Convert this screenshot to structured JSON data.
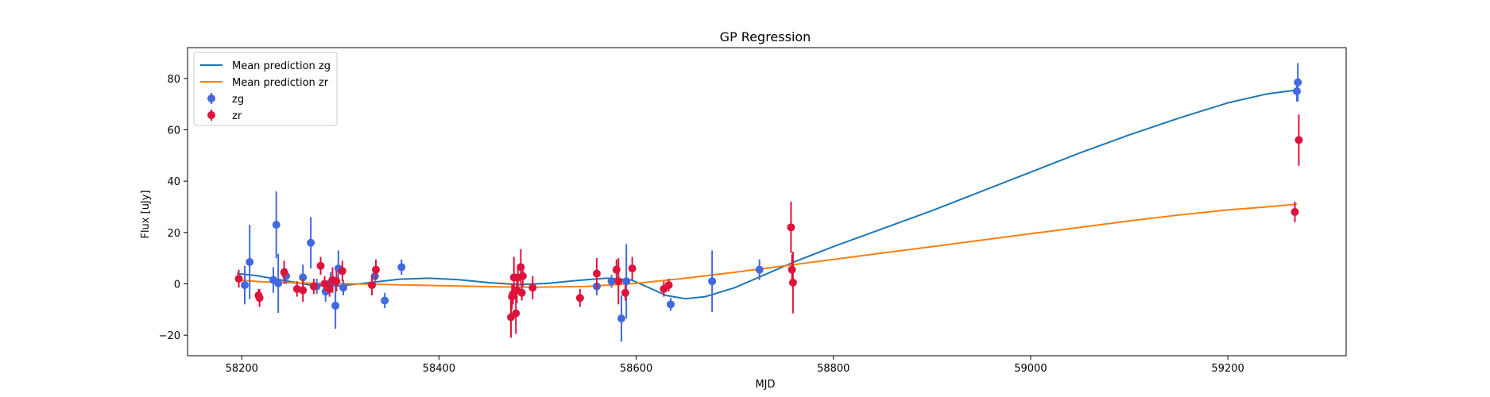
{
  "chart_data": {
    "type": "scatter",
    "title": "GP Regression",
    "xlabel": "MJD",
    "ylabel": "Flux [uJy]",
    "xlim": [
      58145,
      59320
    ],
    "ylim": [
      -28,
      92
    ],
    "xticks": [
      58200,
      58400,
      58600,
      58800,
      59000,
      59200
    ],
    "yticks": [
      -20,
      0,
      20,
      40,
      60,
      80
    ],
    "grid": false,
    "legend_position": "top-left",
    "colors": {
      "line_zg": "#1f77b4",
      "line_zr": "#ff7f0e",
      "points_zg": "#4169e1",
      "points_zr": "#dc143c"
    },
    "lines": [
      {
        "name": "Mean prediction zg",
        "color": "#1f77b4",
        "x": [
          58195,
          58215,
          58240,
          58270,
          58300,
          58330,
          58360,
          58390,
          58420,
          58450,
          58480,
          58510,
          58540,
          58570,
          58595,
          58610,
          58630,
          58650,
          58670,
          58700,
          58730,
          58760,
          58800,
          58850,
          58900,
          58950,
          59000,
          59050,
          59100,
          59150,
          59200,
          59240,
          59270
        ],
        "y": [
          4,
          3.2,
          1.5,
          -0.5,
          -0.8,
          0.5,
          1.8,
          2.2,
          1.6,
          0.5,
          -0.3,
          0.2,
          1.3,
          2.2,
          1.5,
          -1,
          -4.5,
          -5.8,
          -5,
          -1.5,
          3.5,
          8.5,
          14.5,
          21.5,
          28.5,
          36,
          43.5,
          51,
          58,
          64.5,
          70.5,
          74,
          75.5
        ]
      },
      {
        "name": "Mean prediction zr",
        "color": "#ff7f0e",
        "x": [
          58195,
          58220,
          58250,
          58280,
          58300,
          58350,
          58400,
          58450,
          58480,
          58500,
          58550,
          58600,
          58650,
          58700,
          58750,
          58800,
          58850,
          58900,
          58950,
          59000,
          59050,
          59100,
          59150,
          59200,
          59240,
          59270
        ],
        "y": [
          1.5,
          0.8,
          0.4,
          0.2,
          0.1,
          -0.3,
          -0.7,
          -1.1,
          -1.3,
          -1.3,
          -1,
          0.2,
          2.2,
          4.5,
          7,
          9.5,
          12,
          14.5,
          17,
          19.5,
          22,
          24.5,
          26.8,
          28.8,
          30,
          31
        ]
      }
    ],
    "series": [
      {
        "name": "zg",
        "color": "#4169e1",
        "points": [
          {
            "x": 58203,
            "y": -0.5,
            "err": 7.5
          },
          {
            "x": 58208,
            "y": 8.5,
            "err": 14.5
          },
          {
            "x": 58232,
            "y": 1.5,
            "err": 5
          },
          {
            "x": 58235,
            "y": 23,
            "err": 13
          },
          {
            "x": 58237,
            "y": 0.2,
            "err": 11.5
          },
          {
            "x": 58245,
            "y": 3,
            "err": 3
          },
          {
            "x": 58262,
            "y": 2.5,
            "err": 5
          },
          {
            "x": 58270,
            "y": 16,
            "err": 10
          },
          {
            "x": 58276,
            "y": -1,
            "err": 3
          },
          {
            "x": 58285,
            "y": -3,
            "err": 4
          },
          {
            "x": 58290,
            "y": 0.5,
            "err": 4
          },
          {
            "x": 58295,
            "y": -8.5,
            "err": 9
          },
          {
            "x": 58298,
            "y": 6,
            "err": 7
          },
          {
            "x": 58303,
            "y": -1.5,
            "err": 3
          },
          {
            "x": 58335,
            "y": 3,
            "err": 3
          },
          {
            "x": 58345,
            "y": -6.5,
            "err": 3
          },
          {
            "x": 58362,
            "y": 6.5,
            "err": 3
          },
          {
            "x": 58560,
            "y": -1,
            "err": 3.5
          },
          {
            "x": 58575,
            "y": 1,
            "err": 2.5
          },
          {
            "x": 58585,
            "y": -13.5,
            "err": 9
          },
          {
            "x": 58590,
            "y": 1,
            "err": 14.5
          },
          {
            "x": 58635,
            "y": -8,
            "err": 2.5
          },
          {
            "x": 58677,
            "y": 1,
            "err": 12
          },
          {
            "x": 58725,
            "y": 5.5,
            "err": 4
          },
          {
            "x": 59270,
            "y": 75,
            "err": 4
          },
          {
            "x": 59271,
            "y": 78.5,
            "err": 7.5
          }
        ]
      },
      {
        "name": "zr",
        "color": "#dc143c",
        "points": [
          {
            "x": 58197,
            "y": 2,
            "err": 3.5
          },
          {
            "x": 58217,
            "y": -4.5,
            "err": 2.5
          },
          {
            "x": 58218,
            "y": -5.5,
            "err": 3.5
          },
          {
            "x": 58243,
            "y": 4.5,
            "err": 4.5
          },
          {
            "x": 58256,
            "y": -2,
            "err": 3
          },
          {
            "x": 58262,
            "y": -2.5,
            "err": 4.5
          },
          {
            "x": 58273,
            "y": -1,
            "err": 3
          },
          {
            "x": 58280,
            "y": 7,
            "err": 3.5
          },
          {
            "x": 58284,
            "y": 0,
            "err": 3
          },
          {
            "x": 58289,
            "y": -2,
            "err": 3
          },
          {
            "x": 58292,
            "y": 1.5,
            "err": 5
          },
          {
            "x": 58296,
            "y": 1,
            "err": 4
          },
          {
            "x": 58302,
            "y": 5,
            "err": 4
          },
          {
            "x": 58332,
            "y": -0.5,
            "err": 4
          },
          {
            "x": 58336,
            "y": 5.5,
            "err": 4
          },
          {
            "x": 58473,
            "y": -13,
            "err": 8
          },
          {
            "x": 58474,
            "y": -5,
            "err": 5
          },
          {
            "x": 58475,
            "y": -4,
            "err": 4
          },
          {
            "x": 58476,
            "y": 2.5,
            "err": 8
          },
          {
            "x": 58478,
            "y": -11.5,
            "err": 8
          },
          {
            "x": 58479,
            "y": -2.5,
            "err": 5
          },
          {
            "x": 58480,
            "y": 2.5,
            "err": 5
          },
          {
            "x": 58483,
            "y": 6.5,
            "err": 7
          },
          {
            "x": 58484,
            "y": -3.5,
            "err": 3
          },
          {
            "x": 58485,
            "y": 3,
            "err": 4
          },
          {
            "x": 58495,
            "y": -1.5,
            "err": 4.5
          },
          {
            "x": 58543,
            "y": -5.5,
            "err": 3.5
          },
          {
            "x": 58560,
            "y": 4,
            "err": 6
          },
          {
            "x": 58580,
            "y": 5.5,
            "err": 4
          },
          {
            "x": 58582,
            "y": 1,
            "err": 9
          },
          {
            "x": 58589,
            "y": -3.5,
            "err": 3
          },
          {
            "x": 58596,
            "y": 6,
            "err": 4.5
          },
          {
            "x": 58628,
            "y": -2,
            "err": 3
          },
          {
            "x": 58633,
            "y": -0.5,
            "err": 2.5
          },
          {
            "x": 58757,
            "y": 22,
            "err": 10
          },
          {
            "x": 58758,
            "y": 5.5,
            "err": 6
          },
          {
            "x": 58759,
            "y": 0.5,
            "err": 12
          },
          {
            "x": 59268,
            "y": 28,
            "err": 4
          },
          {
            "x": 59272,
            "y": 56,
            "err": 10
          }
        ]
      }
    ]
  }
}
